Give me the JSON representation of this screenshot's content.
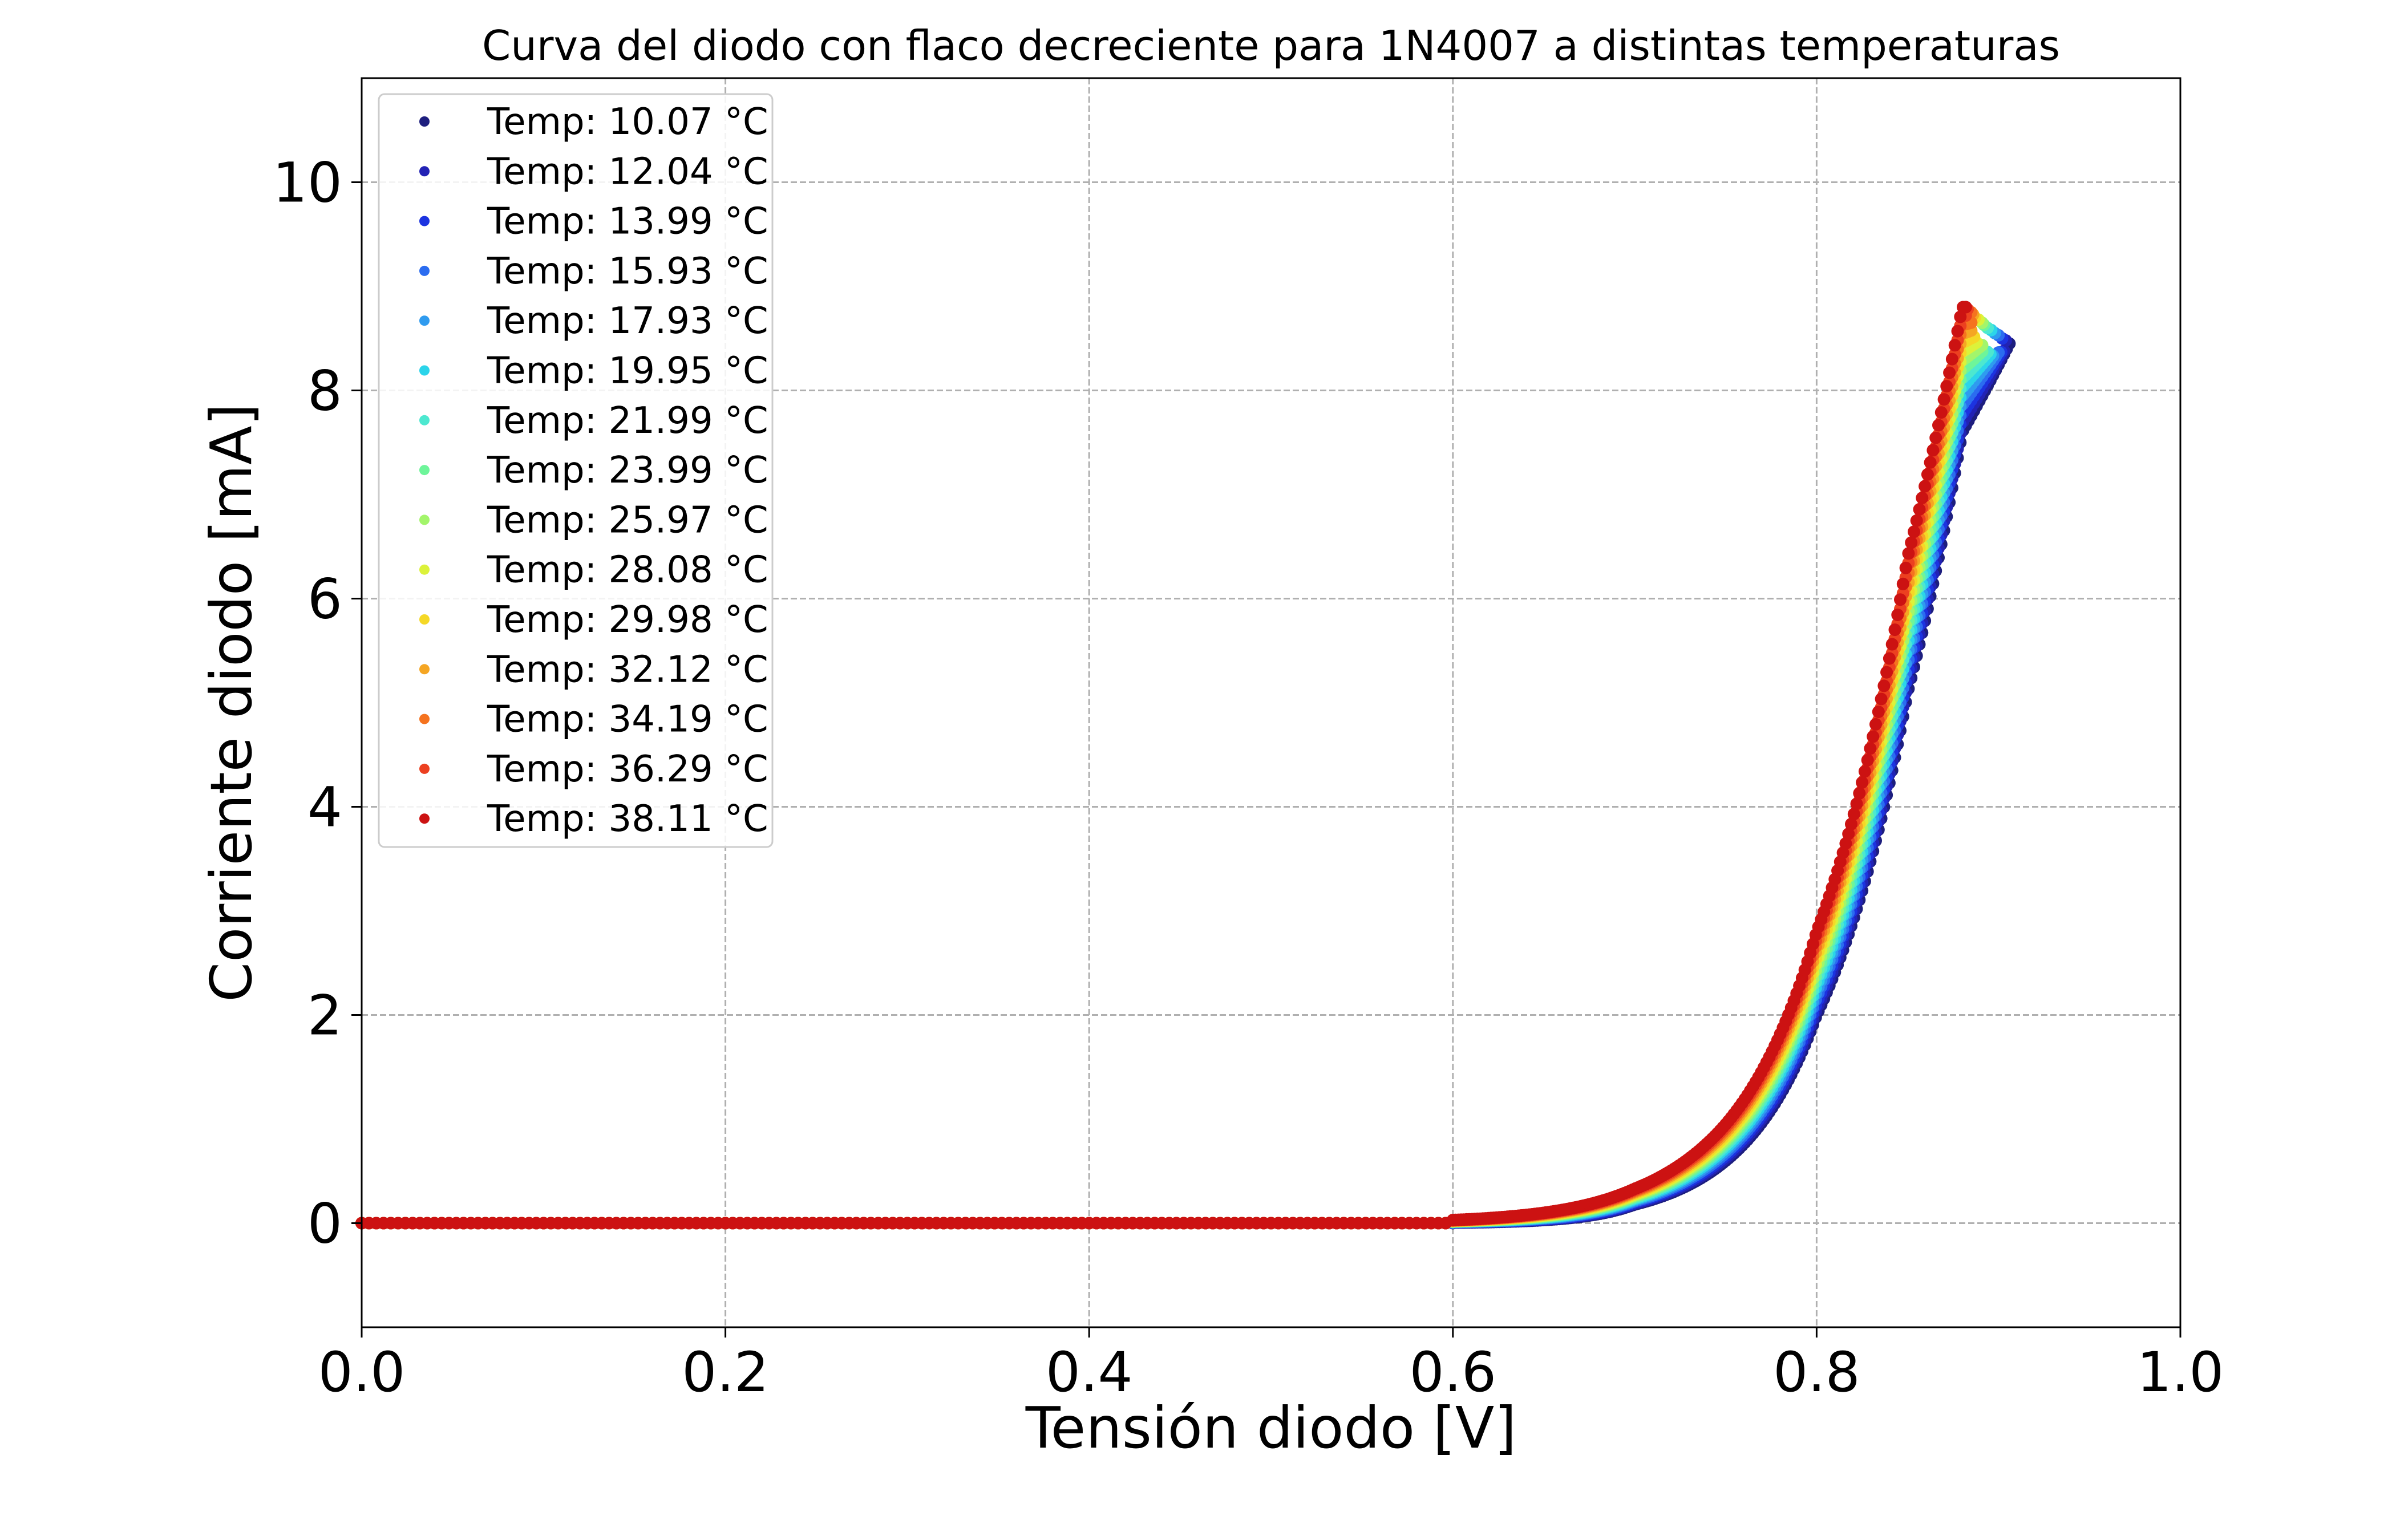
{
  "chart_data": {
    "type": "scatter",
    "title": "Curva del diodo con flaco decreciente para 1N4007 a distintas temperaturas",
    "xlabel": "Tensión diodo [V]",
    "ylabel": "Corriente diodo [mA]",
    "xlim": [
      0.0,
      1.0
    ],
    "ylim": [
      -1.0,
      11.0
    ],
    "x_ticks": [
      "0.0",
      "0.2",
      "0.4",
      "0.6",
      "0.8",
      "1.0"
    ],
    "y_ticks": [
      "0",
      "2",
      "4",
      "6",
      "8",
      "10"
    ],
    "grid": true,
    "legend_position": "top-left",
    "curve_model": {
      "form": "diode_knee",
      "reference_points_coldest": [
        [
          0.6,
          0.0
        ],
        [
          0.7,
          0.18
        ],
        [
          0.75,
          0.6
        ],
        [
          0.8,
          2.0
        ],
        [
          0.85,
          5.1
        ],
        [
          0.88,
          7.6
        ],
        [
          0.906,
          8.45
        ]
      ],
      "reference_points_hottest": [
        [
          0.6,
          0.03
        ],
        [
          0.7,
          0.33
        ],
        [
          0.75,
          0.95
        ],
        [
          0.8,
          2.8
        ],
        [
          0.85,
          6.4
        ],
        [
          0.88,
          8.8
        ]
      ],
      "peak_current_coldest": 8.45,
      "peak_current_hottest": 8.8,
      "peak_voltage_coldest": 0.906,
      "peak_voltage_hottest": 0.882
    },
    "series": [
      {
        "name": "Temp:  10.07 °C",
        "temperature": 10.07,
        "color": "#1d1e7e",
        "peak_v": 0.906,
        "peak_i": 8.45
      },
      {
        "name": "Temp:  12.04 °C",
        "temperature": 12.04,
        "color": "#2222b5",
        "peak_v": 0.904,
        "peak_i": 8.48
      },
      {
        "name": "Temp:  13.99 °C",
        "temperature": 13.99,
        "color": "#1c33e0",
        "peak_v": 0.902,
        "peak_i": 8.5
      },
      {
        "name": "Temp:  15.93 °C",
        "temperature": 15.93,
        "color": "#2b6cf0",
        "peak_v": 0.9,
        "peak_i": 8.53
      },
      {
        "name": "Temp:  17.93 °C",
        "temperature": 17.93,
        "color": "#2f9bef",
        "peak_v": 0.898,
        "peak_i": 8.55
      },
      {
        "name": "Temp:  19.95 °C",
        "temperature": 19.95,
        "color": "#2bd4ea",
        "peak_v": 0.896,
        "peak_i": 8.58
      },
      {
        "name": "Temp:  21.99 °C",
        "temperature": 21.99,
        "color": "#4de8d0",
        "peak_v": 0.894,
        "peak_i": 8.6
      },
      {
        "name": "Temp:  23.99 °C",
        "temperature": 23.99,
        "color": "#6ef59a",
        "peak_v": 0.892,
        "peak_i": 8.63
      },
      {
        "name": "Temp:  25.97 °C",
        "temperature": 25.97,
        "color": "#a3f56b",
        "peak_v": 0.891,
        "peak_i": 8.65
      },
      {
        "name": "Temp:  28.08 °C",
        "temperature": 28.08,
        "color": "#dcf23a",
        "peak_v": 0.889,
        "peak_i": 8.68
      },
      {
        "name": "Temp:  29.98 °C",
        "temperature": 29.98,
        "color": "#f5d826",
        "peak_v": 0.887,
        "peak_i": 8.7
      },
      {
        "name": "Temp:  32.12 °C",
        "temperature": 32.12,
        "color": "#f5a623",
        "peak_v": 0.886,
        "peak_i": 8.73
      },
      {
        "name": "Temp:  34.19 °C",
        "temperature": 34.19,
        "color": "#f5731f",
        "peak_v": 0.885,
        "peak_i": 8.75
      },
      {
        "name": "Temp:  36.29 °C",
        "temperature": 36.29,
        "color": "#ec4020",
        "peak_v": 0.883,
        "peak_i": 8.78
      },
      {
        "name": "Temp:  38.11 °C",
        "temperature": 38.11,
        "color": "#cc1212",
        "peak_v": 0.882,
        "peak_i": 8.8
      }
    ]
  }
}
